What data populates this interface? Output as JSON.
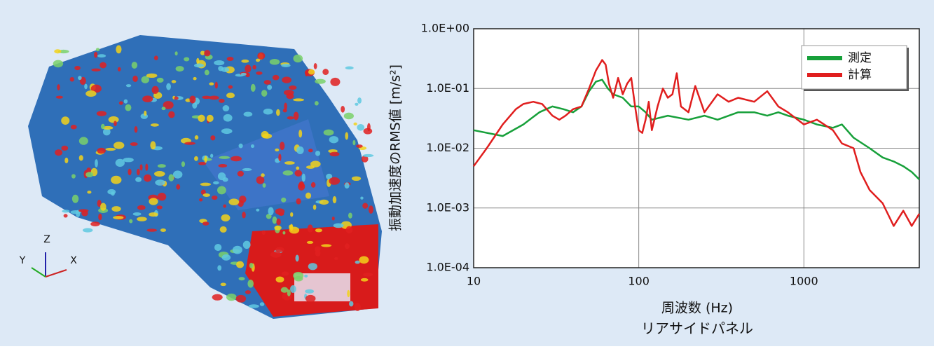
{
  "image": {
    "axis_labels": [
      "Z",
      "Y",
      "X"
    ]
  },
  "chart_data": {
    "type": "line",
    "title": "リアサイドパネル",
    "x_label": "周波数 (Hz)",
    "y_label": "振動加速度のRMS値 [m/s²]",
    "x_scale": "log",
    "y_scale": "log",
    "xlim": [
      10,
      5000
    ],
    "ylim": [
      0.0001,
      1
    ],
    "xticks": [
      10,
      100,
      1000
    ],
    "yticks": [
      {
        "value": 0.0001,
        "label": "1.0E-04"
      },
      {
        "value": 0.001,
        "label": "1.0E-03"
      },
      {
        "value": 0.01,
        "label": "1.0E-02"
      },
      {
        "value": 0.1,
        "label": "1.0E-01"
      },
      {
        "value": 1,
        "label": "1.0E+00"
      }
    ],
    "grid": true,
    "legend": "upper right",
    "series": [
      {
        "name": "測定",
        "color": "#17a03a",
        "x": [
          10,
          15,
          20,
          25,
          30,
          35,
          40,
          45,
          50,
          55,
          60,
          65,
          70,
          80,
          90,
          100,
          110,
          120,
          150,
          200,
          250,
          300,
          400,
          500,
          600,
          700,
          800,
          1000,
          1200,
          1500,
          1700,
          2000,
          2500,
          3000,
          3500,
          4000,
          4500,
          5000
        ],
        "values": [
          0.02,
          0.016,
          0.025,
          0.04,
          0.05,
          0.045,
          0.04,
          0.05,
          0.09,
          0.13,
          0.14,
          0.1,
          0.08,
          0.07,
          0.05,
          0.05,
          0.04,
          0.03,
          0.035,
          0.03,
          0.035,
          0.03,
          0.04,
          0.04,
          0.035,
          0.04,
          0.035,
          0.03,
          0.025,
          0.022,
          0.025,
          0.015,
          0.01,
          0.007,
          0.006,
          0.005,
          0.004,
          0.003
        ]
      },
      {
        "name": "計算",
        "color": "#e01e1e",
        "x": [
          10,
          12,
          15,
          18,
          20,
          23,
          26,
          30,
          33,
          36,
          40,
          45,
          50,
          55,
          60,
          63,
          66,
          70,
          75,
          80,
          85,
          90,
          95,
          100,
          105,
          110,
          115,
          120,
          130,
          140,
          150,
          160,
          170,
          180,
          200,
          220,
          250,
          300,
          350,
          400,
          500,
          600,
          700,
          800,
          1000,
          1200,
          1500,
          1700,
          2000,
          2200,
          2500,
          3000,
          3500,
          4000,
          4500,
          5000
        ],
        "values": [
          0.005,
          0.01,
          0.025,
          0.045,
          0.055,
          0.06,
          0.055,
          0.035,
          0.03,
          0.035,
          0.045,
          0.05,
          0.1,
          0.2,
          0.3,
          0.25,
          0.12,
          0.07,
          0.15,
          0.08,
          0.12,
          0.15,
          0.05,
          0.02,
          0.018,
          0.03,
          0.06,
          0.02,
          0.05,
          0.1,
          0.07,
          0.08,
          0.18,
          0.05,
          0.04,
          0.11,
          0.04,
          0.08,
          0.06,
          0.07,
          0.06,
          0.09,
          0.05,
          0.04,
          0.025,
          0.03,
          0.02,
          0.012,
          0.01,
          0.004,
          0.002,
          0.0012,
          0.0005,
          0.0009,
          0.0005,
          0.0008
        ]
      }
    ]
  }
}
